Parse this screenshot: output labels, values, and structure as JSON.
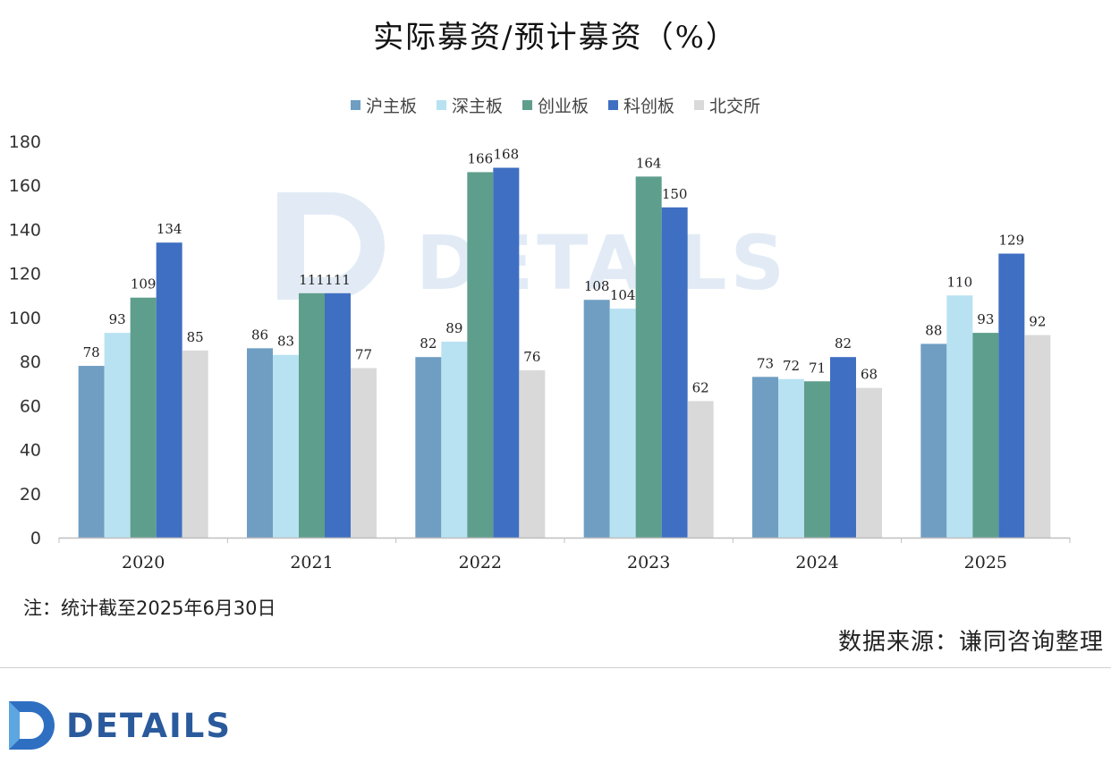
{
  "chart_data": {
    "type": "bar",
    "title": "实际募资/预计募资（%）",
    "categories": [
      "2020",
      "2021",
      "2022",
      "2023",
      "2024",
      "2025"
    ],
    "series": [
      {
        "name": "沪主板",
        "color": "#6f9ec2",
        "values": [
          78,
          86,
          82,
          108,
          73,
          88
        ]
      },
      {
        "name": "深主板",
        "color": "#b8e2f2",
        "values": [
          93,
          83,
          89,
          104,
          72,
          110
        ]
      },
      {
        "name": "创业板",
        "color": "#5e9e8c",
        "values": [
          109,
          111,
          166,
          164,
          71,
          93
        ]
      },
      {
        "name": "科创板",
        "color": "#3f6fc2",
        "values": [
          134,
          111,
          168,
          150,
          82,
          129
        ]
      },
      {
        "name": "北交所",
        "color": "#d9d9d9",
        "values": [
          85,
          77,
          76,
          62,
          68,
          92
        ]
      }
    ],
    "ylim": [
      0,
      180
    ],
    "yticks": [
      0,
      20,
      40,
      60,
      80,
      100,
      120,
      140,
      160,
      180
    ],
    "grid": false,
    "legend": "top-center",
    "data_labels": true
  },
  "note": "注：统计截至2025年6月30日",
  "source": "数据来源：谦同咨询整理",
  "brand": {
    "name": "DETAILS",
    "watermark": "DETAILS",
    "color": "#2a5a9c"
  }
}
